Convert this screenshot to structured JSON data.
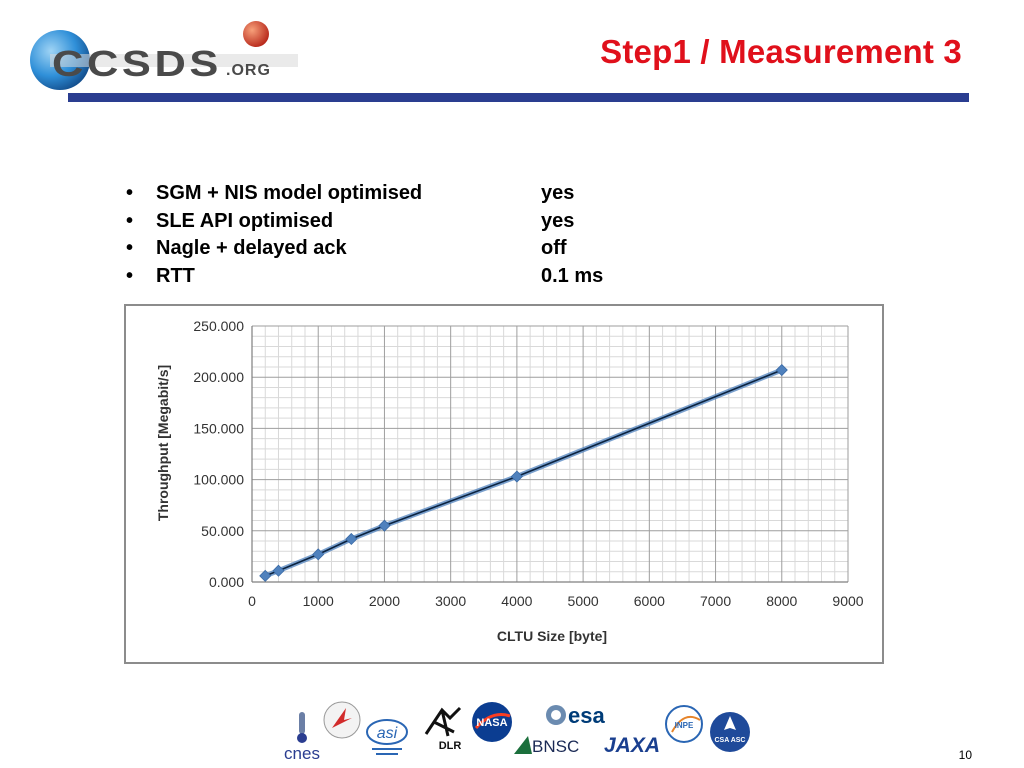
{
  "header": {
    "logo_text": "CCSDS",
    "logo_suffix": ".ORG",
    "title": "Step1 / Measurement 3",
    "accent_color": "#e0101b",
    "rule_color": "#2a3d90"
  },
  "bullets": [
    {
      "label": "SGM + NIS model optimised",
      "value": "yes"
    },
    {
      "label": "SLE API optimised",
      "value": "yes"
    },
    {
      "label": "Nagle + delayed ack",
      "value": "off"
    },
    {
      "label": "RTT",
      "value": "0.1 ms"
    }
  ],
  "chart_data": {
    "type": "line",
    "xlabel": "CLTU Size [byte]",
    "ylabel": "Throughput [Megabit/s]",
    "xlim": [
      0,
      9000
    ],
    "ylim": [
      0,
      250
    ],
    "x_ticks": [
      0,
      1000,
      2000,
      3000,
      4000,
      5000,
      6000,
      7000,
      8000,
      9000
    ],
    "y_ticks": [
      0,
      50,
      100,
      150,
      200,
      250
    ],
    "y_tick_labels": [
      "0.000",
      "50.000",
      "100.000",
      "150.000",
      "200.000",
      "250.000"
    ],
    "grid": true,
    "marker": "diamond",
    "series_color": "#4f81bd",
    "trend_color": "#0b2340",
    "series": [
      {
        "x": [
          200,
          400,
          1000,
          1500,
          2000,
          4000,
          8000
        ],
        "y": [
          6,
          11,
          27,
          42,
          55,
          103,
          207
        ]
      }
    ]
  },
  "footer": {
    "partners": [
      {
        "icon": "cnes-logo",
        "text": "cnes"
      },
      {
        "icon": "roscosmos-logo",
        "text": ""
      },
      {
        "icon": "asi-logo",
        "text": "asi"
      },
      {
        "icon": "dlr-logo",
        "text": "DLR"
      },
      {
        "icon": "nasa-logo",
        "text": "NASA"
      },
      {
        "icon": "esa-logo",
        "text": "esa"
      },
      {
        "icon": "bnsc-logo",
        "text": "BNSC"
      },
      {
        "icon": "jaxa-logo",
        "text": "JAXA"
      },
      {
        "icon": "inpe-logo",
        "text": "INPE"
      },
      {
        "icon": "csa-logo",
        "text": "CSA ASC"
      }
    ],
    "page_number": "10"
  }
}
